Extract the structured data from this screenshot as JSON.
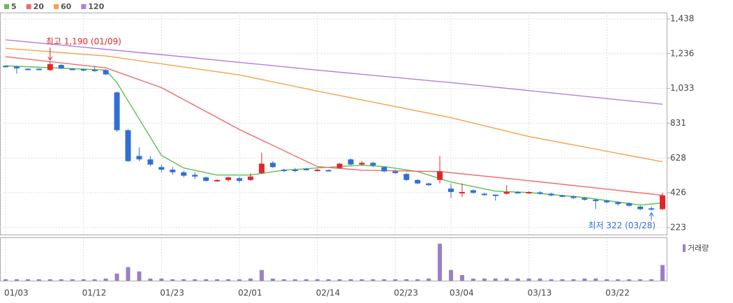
{
  "chart_data": {
    "type": "candlestick",
    "categories": [
      "01/03",
      null,
      null,
      null,
      null,
      null,
      null,
      "01/12",
      null,
      null,
      null,
      null,
      null,
      null,
      "01/23",
      null,
      null,
      null,
      null,
      null,
      null,
      "02/01",
      null,
      null,
      null,
      null,
      null,
      null,
      "02/14",
      null,
      null,
      null,
      null,
      null,
      null,
      "02/23",
      null,
      null,
      null,
      null,
      "03/04",
      null,
      null,
      null,
      null,
      null,
      null,
      "03/13",
      null,
      null,
      null,
      null,
      null,
      null,
      "03/22",
      null,
      null,
      null,
      null,
      null
    ],
    "open": [
      1165,
      1160,
      1148,
      1148,
      1140,
      1170,
      1148,
      1145,
      1142,
      1140,
      1010,
      790,
      640,
      620,
      575,
      560,
      545,
      530,
      515,
      495,
      500,
      510,
      500,
      540,
      600,
      560,
      560,
      565,
      560,
      558,
      570,
      620,
      590,
      600,
      575,
      550,
      535,
      500,
      480,
      500,
      450,
      425,
      440,
      420,
      415,
      420,
      430,
      425,
      428,
      420,
      410,
      405,
      395,
      385,
      380,
      370,
      365,
      345,
      335,
      330
    ],
    "close": [
      1160,
      1150,
      1145,
      1145,
      1175,
      1150,
      1145,
      1140,
      1140,
      1115,
      790,
      610,
      620,
      590,
      560,
      545,
      525,
      520,
      495,
      500,
      515,
      495,
      520,
      595,
      575,
      555,
      555,
      560,
      560,
      555,
      595,
      590,
      600,
      585,
      550,
      540,
      500,
      480,
      470,
      550,
      430,
      430,
      425,
      415,
      410,
      430,
      425,
      430,
      420,
      410,
      405,
      395,
      385,
      380,
      370,
      360,
      350,
      330,
      333,
      410
    ],
    "high": [
      1168,
      1165,
      1150,
      1150,
      1190,
      1175,
      1150,
      1150,
      1165,
      1145,
      1015,
      795,
      690,
      640,
      590,
      575,
      555,
      545,
      520,
      505,
      520,
      520,
      540,
      660,
      610,
      565,
      570,
      570,
      565,
      560,
      600,
      625,
      610,
      605,
      580,
      560,
      540,
      505,
      485,
      640,
      480,
      480,
      445,
      425,
      415,
      470,
      435,
      435,
      435,
      425,
      415,
      410,
      400,
      390,
      385,
      375,
      370,
      350,
      345,
      425
    ],
    "low": [
      1155,
      1120,
      1140,
      1140,
      1135,
      1145,
      1140,
      1135,
      1130,
      1110,
      780,
      605,
      610,
      580,
      545,
      530,
      515,
      505,
      490,
      490,
      490,
      485,
      495,
      535,
      570,
      545,
      545,
      555,
      550,
      550,
      565,
      585,
      585,
      575,
      545,
      535,
      495,
      475,
      465,
      480,
      395,
      400,
      420,
      410,
      380,
      415,
      420,
      420,
      415,
      405,
      400,
      390,
      380,
      330,
      365,
      350,
      345,
      325,
      322,
      325
    ],
    "volume": [
      2,
      2,
      2,
      2,
      2,
      2,
      2,
      2,
      2,
      3,
      10,
      19,
      13,
      3,
      3,
      2,
      2,
      2,
      2,
      2,
      2,
      2,
      3,
      15,
      3,
      2,
      2,
      2,
      2,
      2,
      2,
      2,
      2,
      2,
      2,
      2,
      2,
      2,
      3,
      52,
      15,
      8,
      3,
      3,
      3,
      3,
      3,
      3,
      3,
      2,
      2,
      2,
      3,
      3,
      2,
      2,
      2,
      2,
      2,
      22
    ],
    "volume_label": "거래량",
    "volume_color": "#9a7fc8",
    "volume_lim": [
      0,
      55
    ],
    "up_color": "#e0262b",
    "down_color": "#2f6fd6",
    "moving_averages": [
      {
        "name": "5",
        "color": "#5cc052",
        "x": [
          0,
          9,
          10,
          14,
          16,
          19,
          22,
          25,
          28,
          32,
          34,
          37,
          40,
          44,
          47,
          52,
          57,
          59
        ],
        "values": [
          1165,
          1140,
          1067,
          643,
          570,
          529,
          529,
          557,
          570,
          586,
          578,
          549,
          488,
          435,
          427,
          398,
          354,
          366
        ]
      },
      {
        "name": "20",
        "color": "#f06a6a",
        "x": [
          0,
          9,
          14,
          21,
          28,
          32,
          39,
          47,
          59
        ],
        "values": [
          1218,
          1153,
          1038,
          794,
          578,
          557,
          549,
          496,
          411
        ]
      },
      {
        "name": "60",
        "color": "#f7a04a",
        "x": [
          0,
          9,
          21,
          28,
          40,
          47,
          59
        ],
        "values": [
          1267,
          1222,
          1112,
          1018,
          863,
          753,
          606
        ]
      },
      {
        "name": "120",
        "color": "#b07fe0",
        "x": [
          0,
          14,
          28,
          40,
          59
        ],
        "values": [
          1316,
          1230,
          1140,
          1067,
          941
        ]
      }
    ],
    "annotations": [
      {
        "text": "최고 1,190 (01/09)",
        "index": 4,
        "at": "high",
        "color": "#e0262b"
      },
      {
        "text": "최저 322 (03/28)",
        "index": 58,
        "at": "low",
        "color": "#2f6fd6"
      }
    ],
    "ylim": [
      182,
      1475
    ],
    "yticks": [
      {
        "value": 1438,
        "label": "1,438"
      },
      {
        "value": 1236,
        "label": "1,236"
      },
      {
        "value": 1033,
        "label": "1,033"
      },
      831,
      628,
      426,
      223
    ],
    "grid": true
  }
}
